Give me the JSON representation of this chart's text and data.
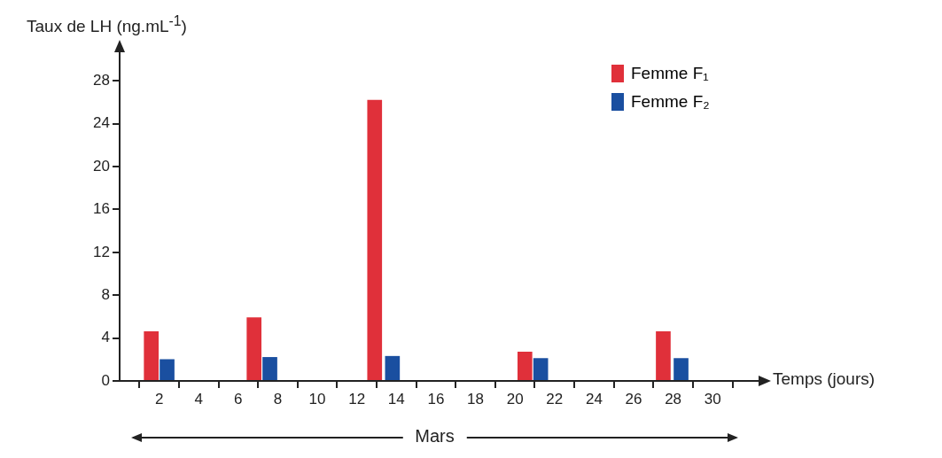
{
  "chart_data": {
    "type": "bar",
    "xlabel": "Temps (jours)",
    "ylabel": "Taux de LH (ng.mL$^{-1}$)",
    "series": [
      {
        "name": "Femme F₁",
        "color": "#e0303a",
        "x": [
          1.6,
          6.8,
          12.9,
          20.5,
          27.5
        ],
        "values": [
          4.6,
          5.9,
          26.2,
          2.7,
          4.6
        ]
      },
      {
        "name": "Femme F₂",
        "color": "#1a4fa0",
        "x": [
          2.4,
          7.6,
          13.8,
          21.3,
          28.4
        ],
        "values": [
          2.0,
          2.2,
          2.3,
          2.1,
          2.1
        ]
      }
    ],
    "xlim": [
      0,
      32.5
    ],
    "xticks": [
      2,
      4,
      6,
      8,
      10,
      12,
      14,
      16,
      18,
      20,
      22,
      24,
      26,
      28,
      30
    ],
    "ylim": [
      0,
      31
    ],
    "yticks": [
      0,
      4,
      8,
      12,
      16,
      20,
      24,
      28
    ],
    "grid": false,
    "legend": "top right",
    "annotations": [
      "Mars"
    ]
  }
}
